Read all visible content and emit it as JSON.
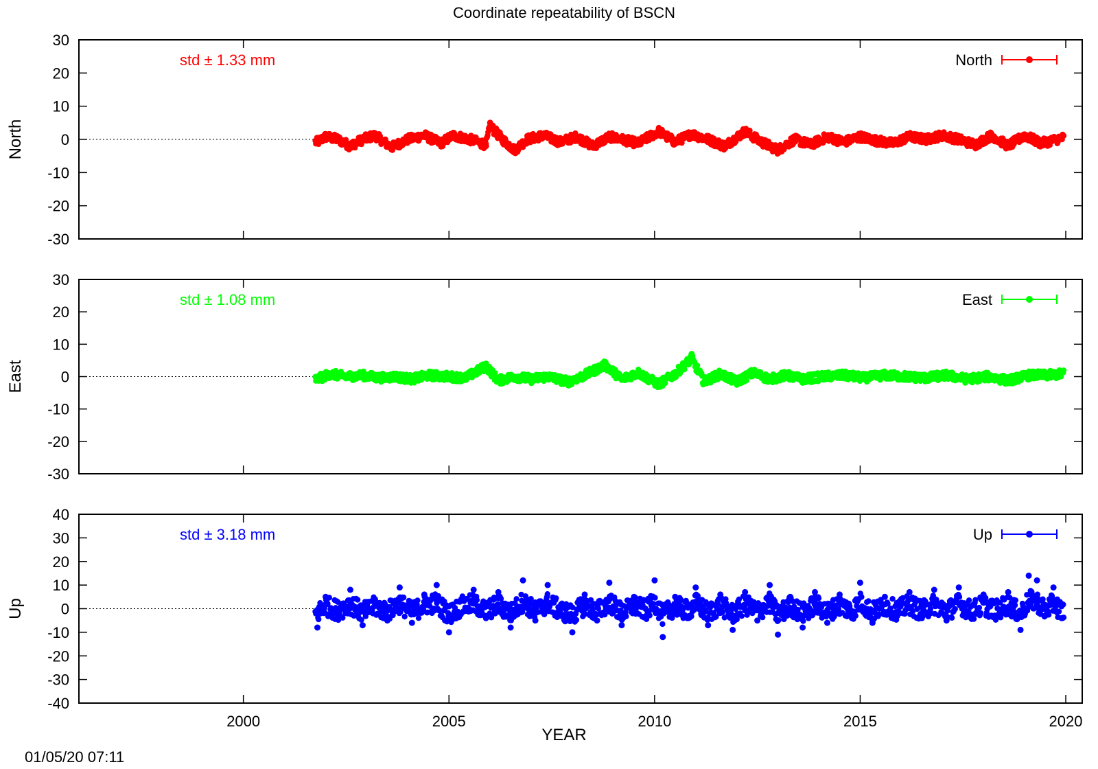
{
  "title": "Coordinate repeatability of BSCN",
  "footer_timestamp": "01/05/20 07:11",
  "chart_data": [
    {
      "type": "scatter",
      "ylabel": "North",
      "ylim": [
        -30,
        30
      ],
      "yticks": [
        30,
        20,
        10,
        0,
        -10,
        -20,
        -30
      ],
      "xlim": [
        1996,
        2020.4
      ],
      "color": "#ff0000",
      "std_label": "std ± 1.33 mm",
      "legend": "North",
      "legend_position": "top-right",
      "zero_reference_line": true,
      "x_start": 2001.75,
      "x_end": 2019.95,
      "series": [
        {
          "name": "North",
          "points": [
            [
              2001.8,
              -1
            ],
            [
              2002.0,
              1
            ],
            [
              2002.3,
              0
            ],
            [
              2002.6,
              -2.5
            ],
            [
              2002.9,
              0
            ],
            [
              2003.2,
              1.5
            ],
            [
              2003.6,
              -3
            ],
            [
              2004.0,
              0
            ],
            [
              2004.4,
              1.5
            ],
            [
              2004.8,
              -1.5
            ],
            [
              2005.1,
              1.5
            ],
            [
              2005.5,
              0
            ],
            [
              2005.9,
              -2
            ],
            [
              2006.0,
              5
            ],
            [
              2006.3,
              0
            ],
            [
              2006.6,
              -4
            ],
            [
              2006.9,
              0
            ],
            [
              2007.3,
              1.5
            ],
            [
              2007.7,
              -1
            ],
            [
              2008.1,
              1
            ],
            [
              2008.5,
              -2.5
            ],
            [
              2008.9,
              1
            ],
            [
              2009.2,
              0
            ],
            [
              2009.6,
              -1.5
            ],
            [
              2010.1,
              3
            ],
            [
              2010.5,
              -1
            ],
            [
              2010.9,
              2
            ],
            [
              2011.3,
              0
            ],
            [
              2011.7,
              -2.5
            ],
            [
              2012.2,
              3
            ],
            [
              2012.6,
              -1
            ],
            [
              2013.0,
              -4
            ],
            [
              2013.4,
              0
            ],
            [
              2013.8,
              -2
            ],
            [
              2014.2,
              1
            ],
            [
              2014.6,
              -1
            ],
            [
              2015.0,
              1
            ],
            [
              2015.4,
              -0.5
            ],
            [
              2015.8,
              -1.5
            ],
            [
              2016.2,
              1
            ],
            [
              2016.6,
              0
            ],
            [
              2017.0,
              1.5
            ],
            [
              2017.4,
              0
            ],
            [
              2017.8,
              -2
            ],
            [
              2018.2,
              1.5
            ],
            [
              2018.6,
              -2.5
            ],
            [
              2019.0,
              1.5
            ],
            [
              2019.4,
              -1.5
            ],
            [
              2019.9,
              0.5
            ]
          ]
        }
      ]
    },
    {
      "type": "scatter",
      "ylabel": "East",
      "ylim": [
        -30,
        30
      ],
      "yticks": [
        30,
        20,
        10,
        0,
        -10,
        -20,
        -30
      ],
      "xlim": [
        1996,
        2020.4
      ],
      "color": "#00ff00",
      "std_label": "std ± 1.08 mm",
      "legend": "East",
      "legend_position": "top-right",
      "zero_reference_line": true,
      "x_start": 2001.75,
      "x_end": 2019.95,
      "series": [
        {
          "name": "East",
          "points": [
            [
              2001.8,
              -1
            ],
            [
              2002.1,
              1
            ],
            [
              2002.5,
              0
            ],
            [
              2002.9,
              0.5
            ],
            [
              2003.3,
              -0.5
            ],
            [
              2003.7,
              0
            ],
            [
              2004.1,
              -1
            ],
            [
              2004.5,
              0.5
            ],
            [
              2005.0,
              0
            ],
            [
              2005.4,
              -0.5
            ],
            [
              2005.9,
              4
            ],
            [
              2006.2,
              -1.5
            ],
            [
              2006.6,
              0
            ],
            [
              2007.0,
              -1
            ],
            [
              2007.4,
              0
            ],
            [
              2007.9,
              -2
            ],
            [
              2008.3,
              0.5
            ],
            [
              2008.8,
              4.5
            ],
            [
              2009.2,
              -1
            ],
            [
              2009.6,
              1.5
            ],
            [
              2010.1,
              -3
            ],
            [
              2010.5,
              1
            ],
            [
              2010.9,
              7
            ],
            [
              2011.2,
              -2
            ],
            [
              2011.6,
              1
            ],
            [
              2012.0,
              -2
            ],
            [
              2012.4,
              1.5
            ],
            [
              2012.8,
              -1
            ],
            [
              2013.2,
              0.5
            ],
            [
              2013.6,
              -1
            ],
            [
              2014.1,
              0
            ],
            [
              2014.6,
              0.5
            ],
            [
              2015.1,
              -0.5
            ],
            [
              2015.6,
              0.5
            ],
            [
              2016.1,
              0
            ],
            [
              2016.6,
              -0.5
            ],
            [
              2017.1,
              0.5
            ],
            [
              2017.6,
              -1
            ],
            [
              2018.1,
              0
            ],
            [
              2018.6,
              -1.5
            ],
            [
              2019.1,
              0.5
            ],
            [
              2019.5,
              0.5
            ],
            [
              2019.9,
              1
            ]
          ]
        }
      ]
    },
    {
      "type": "scatter",
      "ylabel": "Up",
      "ylim": [
        -40,
        40
      ],
      "yticks": [
        40,
        30,
        20,
        10,
        0,
        -10,
        -20,
        -30,
        -40
      ],
      "xlim": [
        1996,
        2020.4
      ],
      "xticks": [
        2000,
        2005,
        2010,
        2015,
        2020
      ],
      "xlabel": "YEAR",
      "color": "#0000ff",
      "std_label": "std ± 3.18 mm",
      "legend": "Up",
      "legend_position": "top-right",
      "zero_reference_line": true,
      "x_start": 2001.75,
      "x_end": 2019.95,
      "series": [
        {
          "name": "Up",
          "points": [
            [
              2001.8,
              -8
            ],
            [
              2002.0,
              5
            ],
            [
              2002.3,
              -3
            ],
            [
              2002.6,
              8
            ],
            [
              2002.9,
              -7
            ],
            [
              2003.2,
              4
            ],
            [
              2003.5,
              -5
            ],
            [
              2003.8,
              9
            ],
            [
              2004.1,
              -6
            ],
            [
              2004.4,
              6
            ],
            [
              2004.7,
              10
            ],
            [
              2005.0,
              -10
            ],
            [
              2005.3,
              4
            ],
            [
              2005.6,
              8
            ],
            [
              2005.9,
              -4
            ],
            [
              2006.2,
              7
            ],
            [
              2006.5,
              -8
            ],
            [
              2006.8,
              12
            ],
            [
              2007.1,
              -5
            ],
            [
              2007.4,
              10
            ],
            [
              2007.7,
              -3
            ],
            [
              2008.0,
              -10
            ],
            [
              2008.3,
              6
            ],
            [
              2008.6,
              -5
            ],
            [
              2008.9,
              11
            ],
            [
              2009.2,
              -7
            ],
            [
              2009.5,
              5
            ],
            [
              2009.8,
              -3
            ],
            [
              2010.0,
              12
            ],
            [
              2010.2,
              -12
            ],
            [
              2010.5,
              5
            ],
            [
              2010.8,
              -4
            ],
            [
              2011.0,
              9
            ],
            [
              2011.3,
              -7
            ],
            [
              2011.6,
              6
            ],
            [
              2011.9,
              -9
            ],
            [
              2012.2,
              7
            ],
            [
              2012.5,
              -5
            ],
            [
              2012.8,
              10
            ],
            [
              2013.0,
              -11
            ],
            [
              2013.3,
              5
            ],
            [
              2013.6,
              -8
            ],
            [
              2013.9,
              7
            ],
            [
              2014.2,
              -6
            ],
            [
              2014.5,
              6
            ],
            [
              2014.8,
              -4
            ],
            [
              2015.0,
              11
            ],
            [
              2015.3,
              -6
            ],
            [
              2015.6,
              5
            ],
            [
              2015.9,
              -3
            ],
            [
              2016.2,
              7
            ],
            [
              2016.5,
              -4
            ],
            [
              2016.8,
              8
            ],
            [
              2017.1,
              -5
            ],
            [
              2017.4,
              9
            ],
            [
              2017.7,
              -4
            ],
            [
              2018.0,
              6
            ],
            [
              2018.3,
              -3
            ],
            [
              2018.6,
              7
            ],
            [
              2018.9,
              -9
            ],
            [
              2019.1,
              14
            ],
            [
              2019.3,
              12
            ],
            [
              2019.5,
              -3
            ],
            [
              2019.7,
              9
            ],
            [
              2019.9,
              -4
            ]
          ]
        }
      ]
    }
  ]
}
